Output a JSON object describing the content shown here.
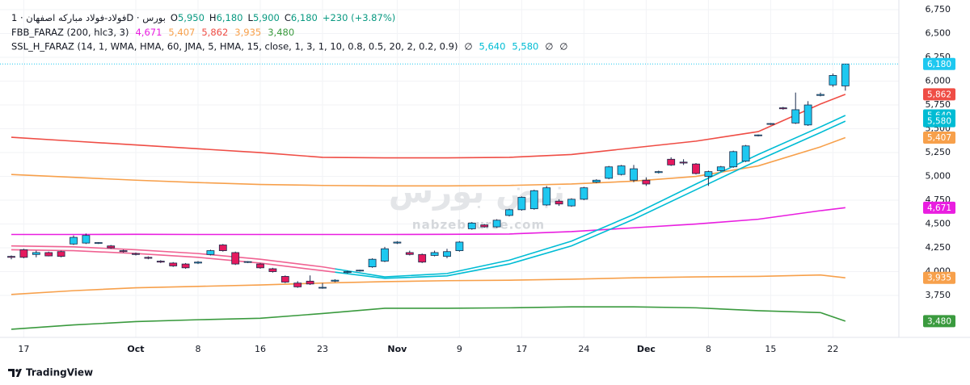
{
  "chart_data": {
    "type": "candlestick",
    "legend": {
      "symbol": "فولاد-فولاد مبارکه اصفهان · 1D · بورس",
      "ohlc": [
        {
          "key": "O",
          "label": "5,950"
        },
        {
          "key": "H",
          "label": "6,180"
        },
        {
          "key": "L",
          "label": "5,900"
        },
        {
          "key": "C",
          "label": "6,180"
        }
      ],
      "change": "+230 (+3.87%)",
      "value_color": "#089981"
    },
    "watermark": {
      "name": "نبض بورس",
      "site": "nabzebourse.com"
    },
    "footer": "TradingView",
    "categories": [
      null,
      "17",
      null,
      null,
      null,
      null,
      null,
      null,
      null,
      null,
      "Oct",
      null,
      null,
      null,
      null,
      "8",
      null,
      null,
      null,
      null,
      "16",
      null,
      null,
      null,
      null,
      "23",
      null,
      null,
      null,
      null,
      null,
      "Nov",
      null,
      null,
      null,
      null,
      "9",
      null,
      null,
      null,
      null,
      "17",
      null,
      null,
      null,
      null,
      "24",
      null,
      null,
      null,
      null,
      "Dec",
      null,
      null,
      null,
      null,
      "8",
      null,
      null,
      null,
      null,
      "15",
      null,
      null,
      null,
      null,
      "22",
      null
    ],
    "open": [
      4160,
      4230,
      4180,
      4200,
      4210,
      4290,
      4300,
      4300,
      4270,
      4220,
      4190,
      4150,
      4110,
      4090,
      4080,
      4090,
      4180,
      4280,
      4200,
      4100,
      4080,
      4030,
      3950,
      3880,
      3900,
      3830,
      3900,
      3990,
      4010,
      4050,
      4110,
      4300,
      4200,
      4180,
      4170,
      4160,
      4220,
      4450,
      4490,
      4470,
      4590,
      4650,
      4660,
      4700,
      4740,
      4690,
      4760,
      4940,
      4980,
      5020,
      4960,
      4960,
      5040,
      5180,
      5150,
      5130,
      5000,
      5060,
      5100,
      5160,
      5430,
      5550,
      5720,
      5560,
      5540,
      5850,
      5960,
      5950
    ],
    "high": [
      4170,
      4240,
      4220,
      4210,
      4220,
      4380,
      4400,
      4310,
      4280,
      4230,
      4200,
      4160,
      4120,
      4100,
      4090,
      4110,
      4230,
      4290,
      4210,
      4110,
      4090,
      4040,
      3960,
      3900,
      3960,
      3880,
      3920,
      4010,
      4020,
      4140,
      4260,
      4320,
      4220,
      4190,
      4220,
      4240,
      4320,
      4520,
      4500,
      4550,
      4660,
      4790,
      4860,
      4900,
      4760,
      4770,
      4890,
      4970,
      5110,
      5120,
      5120,
      4990,
      5060,
      5200,
      5180,
      5140,
      5060,
      5110,
      5270,
      5330,
      5440,
      5560,
      5730,
      5880,
      5790,
      5880,
      6080,
      6180
    ],
    "low": [
      4130,
      4140,
      4150,
      4160,
      4150,
      4280,
      4290,
      4290,
      4240,
      4200,
      4170,
      4130,
      4090,
      4050,
      4030,
      4080,
      4170,
      4210,
      4070,
      4090,
      4030,
      3990,
      3880,
      3830,
      3860,
      3820,
      3890,
      3980,
      4000,
      4040,
      4100,
      4290,
      4170,
      4090,
      4160,
      4140,
      4210,
      4440,
      4460,
      4460,
      4580,
      4640,
      4650,
      4690,
      4690,
      4680,
      4750,
      4930,
      4970,
      5010,
      4940,
      4900,
      5030,
      5110,
      5120,
      5020,
      4900,
      5050,
      5090,
      5150,
      5420,
      5540,
      5700,
      5550,
      5530,
      5840,
      5940,
      5900
    ],
    "close": [
      4150,
      4150,
      4200,
      4165,
      4160,
      4360,
      4380,
      4305,
      4250,
      4210,
      4180,
      4140,
      4100,
      4060,
      4040,
      4100,
      4220,
      4220,
      4080,
      4105,
      4040,
      4000,
      3890,
      3840,
      3870,
      3835,
      3910,
      4000,
      4015,
      4130,
      4240,
      4310,
      4180,
      4100,
      4200,
      4210,
      4310,
      4510,
      4470,
      4540,
      4650,
      4780,
      4850,
      4880,
      4710,
      4760,
      4880,
      4960,
      5100,
      5110,
      5080,
      4920,
      5050,
      5120,
      5140,
      5030,
      5050,
      5100,
      5260,
      5320,
      5435,
      5555,
      5710,
      5700,
      5750,
      5860,
      6060,
      6180
    ],
    "up_color": "#1ec8f0",
    "down_color": "#e5195e",
    "border_color": "#1a2b4c",
    "last_price_color": "#1ec8f0",
    "indicators": [
      {
        "name": "FBB_FARAZ (200, hlc3, 3)",
        "items": [
          {
            "label": "4,671",
            "color": "#e91ee0",
            "x": [
              0,
              5,
              10,
              15,
              20,
              25,
              30,
              35,
              40,
              45,
              50,
              55,
              60,
              65,
              67
            ],
            "values": [
              4390,
              4390,
              4392,
              4390,
              4390,
              4390,
              4390,
              4392,
              4395,
              4420,
              4460,
              4500,
              4550,
              4640,
              4671
            ]
          },
          {
            "label": "5,407",
            "color": "#f7a04b",
            "x": [
              0,
              5,
              10,
              15,
              20,
              25,
              30,
              35,
              40,
              45,
              50,
              55,
              60,
              65,
              67
            ],
            "values": [
              5020,
              4990,
              4960,
              4935,
              4915,
              4905,
              4900,
              4900,
              4905,
              4920,
              4950,
              5000,
              5110,
              5310,
              5407
            ]
          },
          {
            "label": "5,862",
            "color": "#ef4d45",
            "x": [
              0,
              5,
              10,
              15,
              20,
              25,
              30,
              35,
              40,
              45,
              50,
              55,
              60,
              65,
              67
            ],
            "values": [
              5411,
              5370,
              5330,
              5290,
              5250,
              5200,
              5195,
              5195,
              5200,
              5230,
              5300,
              5370,
              5470,
              5760,
              5862
            ]
          },
          {
            "label": "3,935",
            "color": "#f7a04b",
            "x": [
              0,
              5,
              10,
              15,
              20,
              25,
              30,
              35,
              40,
              45,
              50,
              55,
              60,
              65,
              67
            ],
            "values": [
              3760,
              3800,
              3830,
              3845,
              3860,
              3880,
              3895,
              3905,
              3910,
              3920,
              3935,
              3945,
              3950,
              3965,
              3935
            ]
          },
          {
            "label": "3,480",
            "color": "#3a9a3e",
            "x": [
              0,
              5,
              10,
              15,
              20,
              25,
              30,
              35,
              40,
              45,
              50,
              55,
              60,
              65,
              67
            ],
            "values": [
              3395,
              3440,
              3475,
              3495,
              3510,
              3560,
              3615,
              3615,
              3620,
              3630,
              3630,
              3620,
              3590,
              3570,
              3480
            ]
          }
        ]
      },
      {
        "name": "SSL_H_FARAZ (14, 1, WMA, HMA, 60, JMA, 5, HMA, 15, close, 1, 3, 1, 10, 0.8, 0.5, 20, 2, 0.2, 0.9)",
        "items": [
          {
            "label": "∅"
          },
          {
            "label": "5,640",
            "color": "#00bcd4",
            "down_color": "#f06292",
            "down_until": 26,
            "x": [
              0,
              5,
              10,
              15,
              20,
              25,
              30,
              35,
              40,
              45,
              50,
              55,
              60,
              65,
              67
            ],
            "values": [
              4270,
              4260,
              4230,
              4190,
              4130,
              4050,
              3945,
              3980,
              4120,
              4320,
              4600,
              4920,
              5230,
              5520,
              5640
            ]
          },
          {
            "label": "5,580",
            "color": "#00bcd4",
            "down_color": "#f06292",
            "down_until": 26,
            "x": [
              0,
              5,
              10,
              15,
              20,
              25,
              30,
              35,
              40,
              45,
              50,
              55,
              60,
              65,
              67
            ],
            "values": [
              4230,
              4220,
              4190,
              4150,
              4090,
              4010,
              3930,
              3955,
              4080,
              4270,
              4550,
              4860,
              5170,
              5460,
              5580
            ]
          },
          {
            "label": "∅"
          },
          {
            "label": "∅"
          }
        ]
      }
    ],
    "ylim": [
      3335,
      6852
    ],
    "yticks": [
      {
        "value": 3750,
        "label": "3,750"
      },
      {
        "value": 4000,
        "label": "4,000"
      },
      {
        "value": 4250,
        "label": "4,250"
      },
      {
        "value": 4500,
        "label": "4,500"
      },
      {
        "value": 4750,
        "label": "4,750"
      },
      {
        "value": 5000,
        "label": "5,000"
      },
      {
        "value": 5250,
        "label": "5,250"
      },
      {
        "value": 5500,
        "label": "5,500"
      },
      {
        "value": 5750,
        "label": "5,750"
      },
      {
        "value": 6000,
        "label": "6,000"
      },
      {
        "value": 6250,
        "label": "6,250"
      },
      {
        "value": 6500,
        "label": "6,500"
      },
      {
        "value": 6750,
        "label": "6,750"
      }
    ],
    "grid": true
  }
}
